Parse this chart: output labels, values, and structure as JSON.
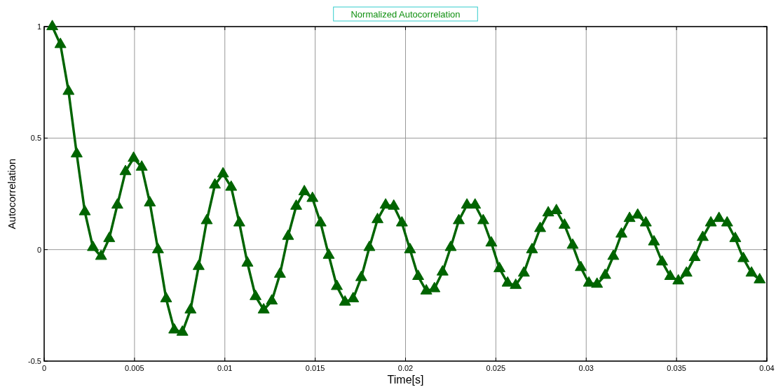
{
  "chart_data": {
    "type": "line",
    "title": "Normalized Autocorrelation",
    "xlabel": "Time[s]",
    "ylabel": "Autocorrelation",
    "x": [
      0.00045,
      0.0009,
      0.00135,
      0.0018,
      0.00225,
      0.0027,
      0.00315,
      0.0036,
      0.00405,
      0.0045,
      0.00495,
      0.0054,
      0.00585,
      0.0063,
      0.00675,
      0.0072,
      0.00765,
      0.0081,
      0.00855,
      0.009,
      0.00945,
      0.0099,
      0.01035,
      0.0108,
      0.01125,
      0.0117,
      0.01215,
      0.0126,
      0.01305,
      0.0135,
      0.01395,
      0.0144,
      0.01485,
      0.0153,
      0.01575,
      0.0162,
      0.01665,
      0.0171,
      0.01755,
      0.018,
      0.01845,
      0.0189,
      0.01935,
      0.0198,
      0.02025,
      0.0207,
      0.02115,
      0.0216,
      0.02205,
      0.0225,
      0.02295,
      0.0234,
      0.02385,
      0.0243,
      0.02475,
      0.0252,
      0.02565,
      0.0261,
      0.02655,
      0.027,
      0.02745,
      0.0279,
      0.02835,
      0.0288,
      0.02925,
      0.0297,
      0.03015,
      0.0306,
      0.03105,
      0.0315,
      0.03195,
      0.0324,
      0.03285,
      0.0333,
      0.03375,
      0.0342,
      0.03465,
      0.0351,
      0.03555,
      0.036,
      0.03645,
      0.0369,
      0.03735,
      0.0378,
      0.03825,
      0.0387,
      0.03915,
      0.0396
    ],
    "series": [
      {
        "color": "#006400",
        "values": [
          1.0,
          0.92,
          0.71,
          0.43,
          0.17,
          0.01,
          -0.03,
          0.05,
          0.2,
          0.35,
          0.41,
          0.37,
          0.21,
          0.0,
          -0.22,
          -0.36,
          -0.37,
          -0.27,
          -0.075,
          0.13,
          0.29,
          0.34,
          0.28,
          0.12,
          -0.06,
          -0.21,
          -0.27,
          -0.23,
          -0.11,
          0.06,
          0.195,
          0.26,
          0.23,
          0.12,
          -0.025,
          -0.165,
          -0.235,
          -0.22,
          -0.125,
          0.01,
          0.135,
          0.2,
          0.195,
          0.12,
          0.0,
          -0.12,
          -0.185,
          -0.175,
          -0.1,
          0.01,
          0.13,
          0.2,
          0.2,
          0.13,
          0.03,
          -0.085,
          -0.15,
          -0.16,
          -0.105,
          0.0,
          0.095,
          0.165,
          0.175,
          0.11,
          0.02,
          -0.08,
          -0.15,
          -0.155,
          -0.115,
          -0.03,
          0.07,
          0.14,
          0.155,
          0.12,
          0.035,
          -0.055,
          -0.12,
          -0.14,
          -0.105,
          -0.035,
          0.055,
          0.12,
          0.14,
          0.12,
          0.05,
          -0.04,
          -0.105,
          -0.135
        ]
      }
    ],
    "xlim": [
      0,
      0.04
    ],
    "xticks": [
      0,
      0.005,
      0.01,
      0.015,
      0.02,
      0.025,
      0.03,
      0.035,
      0.04
    ],
    "ylim": [
      -0.5,
      1
    ],
    "yticks": [
      -0.5,
      0,
      0.5,
      1
    ],
    "grid": true,
    "marker": "triangle",
    "line_style": "solid"
  }
}
